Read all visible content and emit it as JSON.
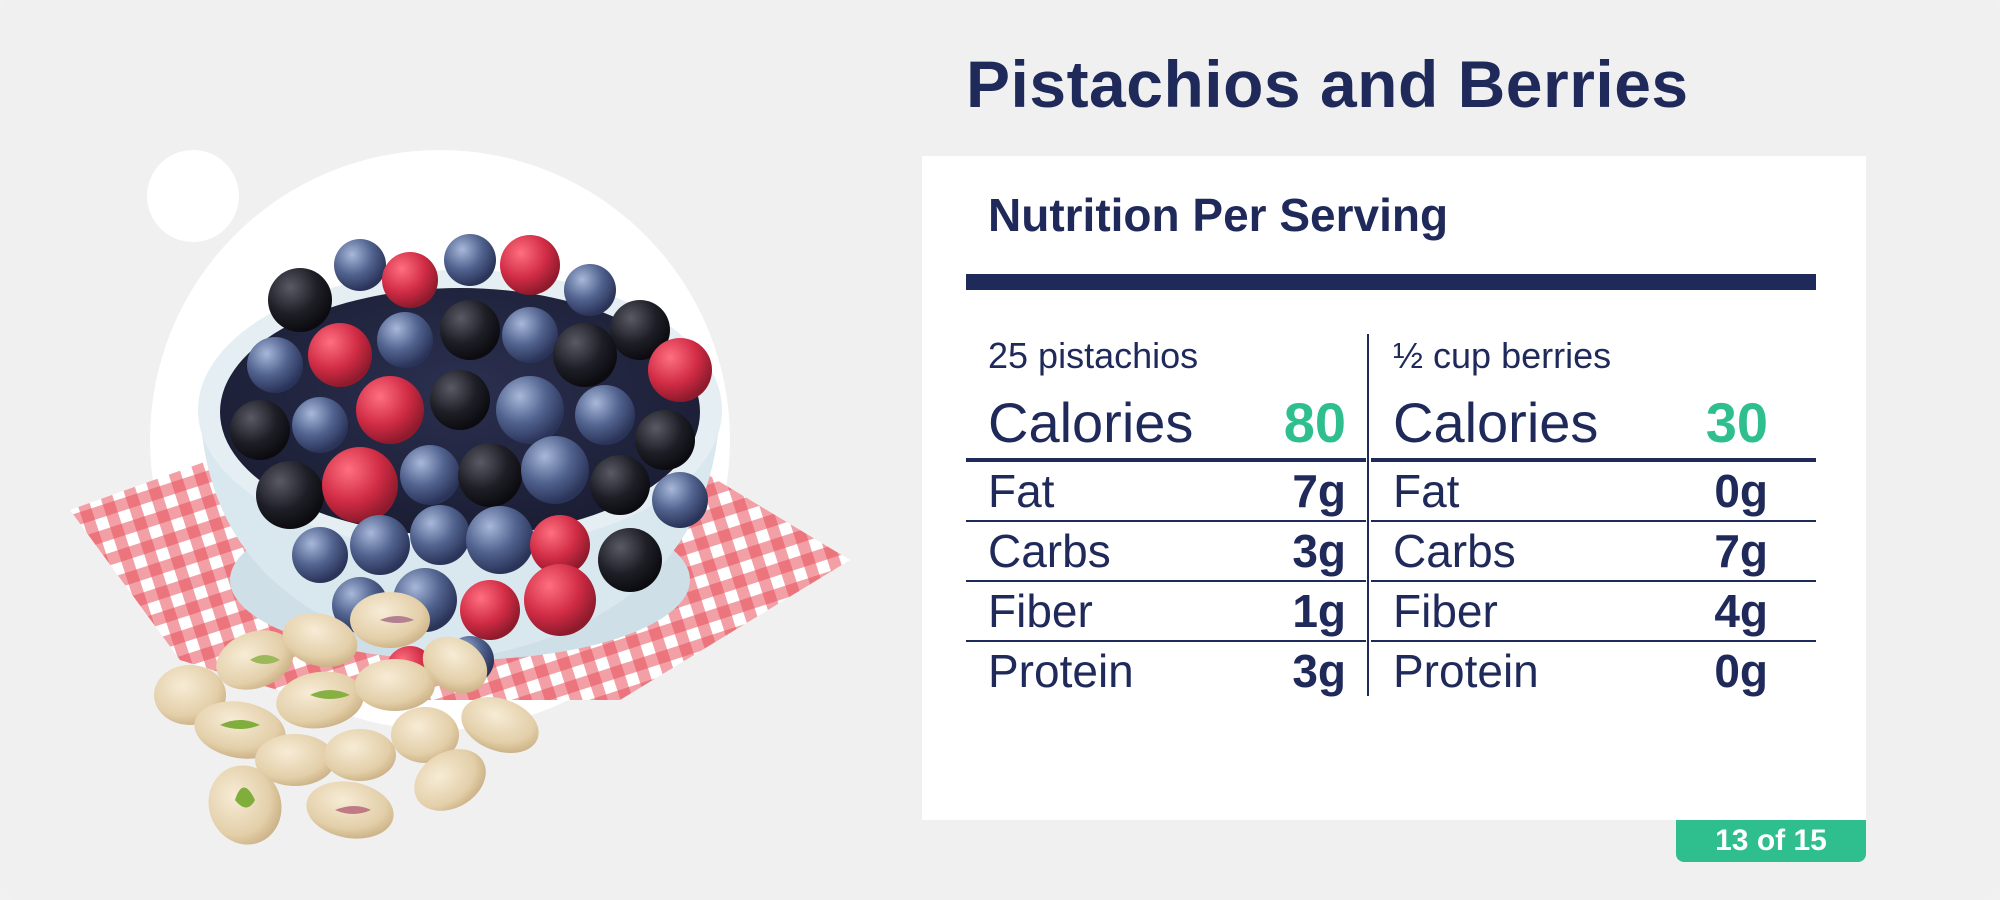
{
  "page": {
    "title": "Pistachios and Berries",
    "counter": "13 of 15"
  },
  "card": {
    "heading": "Nutrition Per Serving",
    "columns": [
      {
        "serving": "25 pistachios",
        "calories_label": "Calories",
        "calories_value": "80",
        "rows": [
          {
            "label": "Fat",
            "value": "7g"
          },
          {
            "label": "Carbs",
            "value": "3g"
          },
          {
            "label": "Fiber",
            "value": "1g"
          },
          {
            "label": "Protein",
            "value": "3g"
          }
        ]
      },
      {
        "serving": "½ cup berries",
        "calories_label": "Calories",
        "calories_value": "30",
        "rows": [
          {
            "label": "Fat",
            "value": "0g"
          },
          {
            "label": "Carbs",
            "value": "7g"
          },
          {
            "label": "Fiber",
            "value": "4g"
          },
          {
            "label": "Protein",
            "value": "0g"
          }
        ]
      }
    ]
  },
  "colors": {
    "navy": "#1f2a5a",
    "accent_green": "#2fbf8f",
    "background": "#f0f0f0",
    "card": "#ffffff"
  },
  "illustration": {
    "icon": "bowl-of-berries-and-pistachios-image"
  }
}
